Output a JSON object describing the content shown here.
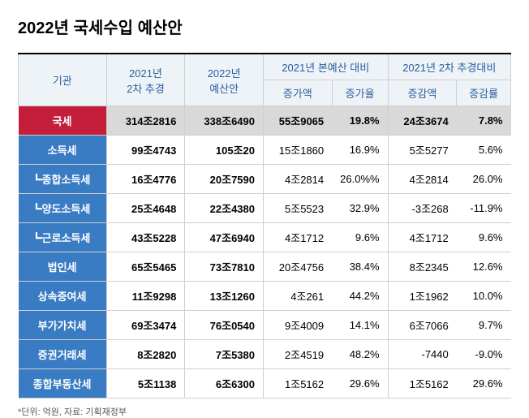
{
  "title": "2022년 국세수입 예산안",
  "headers": {
    "col1": "기관",
    "col2": "2021년\n2차 추경",
    "col3": "2022년\n예산안",
    "group1": "2021년 본예산 대비",
    "group1_sub1": "증가액",
    "group1_sub2": "증가율",
    "group2": "2021년 2차 추경대비",
    "group2_sub1": "증감액",
    "group2_sub2": "증감률"
  },
  "rows": [
    {
      "label": "국세",
      "highlight": true,
      "sub": false,
      "c2": "314조2816",
      "c3": "338조6490",
      "c4": "55조9065",
      "c5": "19.8%",
      "c6": "24조3674",
      "c7": "7.8%"
    },
    {
      "label": "소득세",
      "highlight": false,
      "sub": false,
      "c2": "99조4743",
      "c3": "105조20",
      "c4": "15조1860",
      "c5": "16.9%",
      "c6": "5조5277",
      "c7": "5.6%"
    },
    {
      "label": "┗종합소득세",
      "highlight": false,
      "sub": true,
      "c2": "16조4776",
      "c3": "20조7590",
      "c4": "4조2814",
      "c5": "26.0%%",
      "c6": "4조2814",
      "c7": "26.0%"
    },
    {
      "label": "┗양도소득세",
      "highlight": false,
      "sub": true,
      "c2": "25조4648",
      "c3": "22조4380",
      "c4": "5조5523",
      "c5": "32.9%",
      "c6": "-3조268",
      "c7": "-11.9%"
    },
    {
      "label": "┗근로소득세",
      "highlight": false,
      "sub": true,
      "c2": "43조5228",
      "c3": "47조6940",
      "c4": "4조1712",
      "c5": "9.6%",
      "c6": "4조1712",
      "c7": "9.6%"
    },
    {
      "label": "법인세",
      "highlight": false,
      "sub": false,
      "c2": "65조5465",
      "c3": "73조7810",
      "c4": "20조4756",
      "c5": "38.4%",
      "c6": "8조2345",
      "c7": "12.6%"
    },
    {
      "label": "상속증여세",
      "highlight": false,
      "sub": false,
      "c2": "11조9298",
      "c3": "13조1260",
      "c4": "4조261",
      "c5": "44.2%",
      "c6": "1조1962",
      "c7": "10.0%"
    },
    {
      "label": "부가가치세",
      "highlight": false,
      "sub": false,
      "c2": "69조3474",
      "c3": "76조0540",
      "c4": "9조4009",
      "c5": "14.1%",
      "c6": "6조7066",
      "c7": "9.7%"
    },
    {
      "label": "증권거래세",
      "highlight": false,
      "sub": false,
      "c2": "8조2820",
      "c3": "7조5380",
      "c4": "2조4519",
      "c5": "48.2%",
      "c6": "-7440",
      "c7": "-9.0%"
    },
    {
      "label": "종합부동산세",
      "highlight": false,
      "sub": false,
      "c2": "5조1138",
      "c3": "6조6300",
      "c4": "1조5162",
      "c5": "29.6%",
      "c6": "1조5162",
      "c7": "29.6%"
    }
  ],
  "footnote": "*단위: 억원, 자료: 기획재정부",
  "colors": {
    "header_bg": "#eef3f8",
    "header_text": "#2a5e9e",
    "label_bg": "#3a7cc4",
    "highlight_bg": "#c41e3a",
    "highlight_row_bg": "#d9d9d9",
    "border": "#cfcfcf"
  },
  "column_widths": [
    "18%",
    "16%",
    "16%",
    "14%",
    "11%",
    "14%",
    "11%"
  ]
}
